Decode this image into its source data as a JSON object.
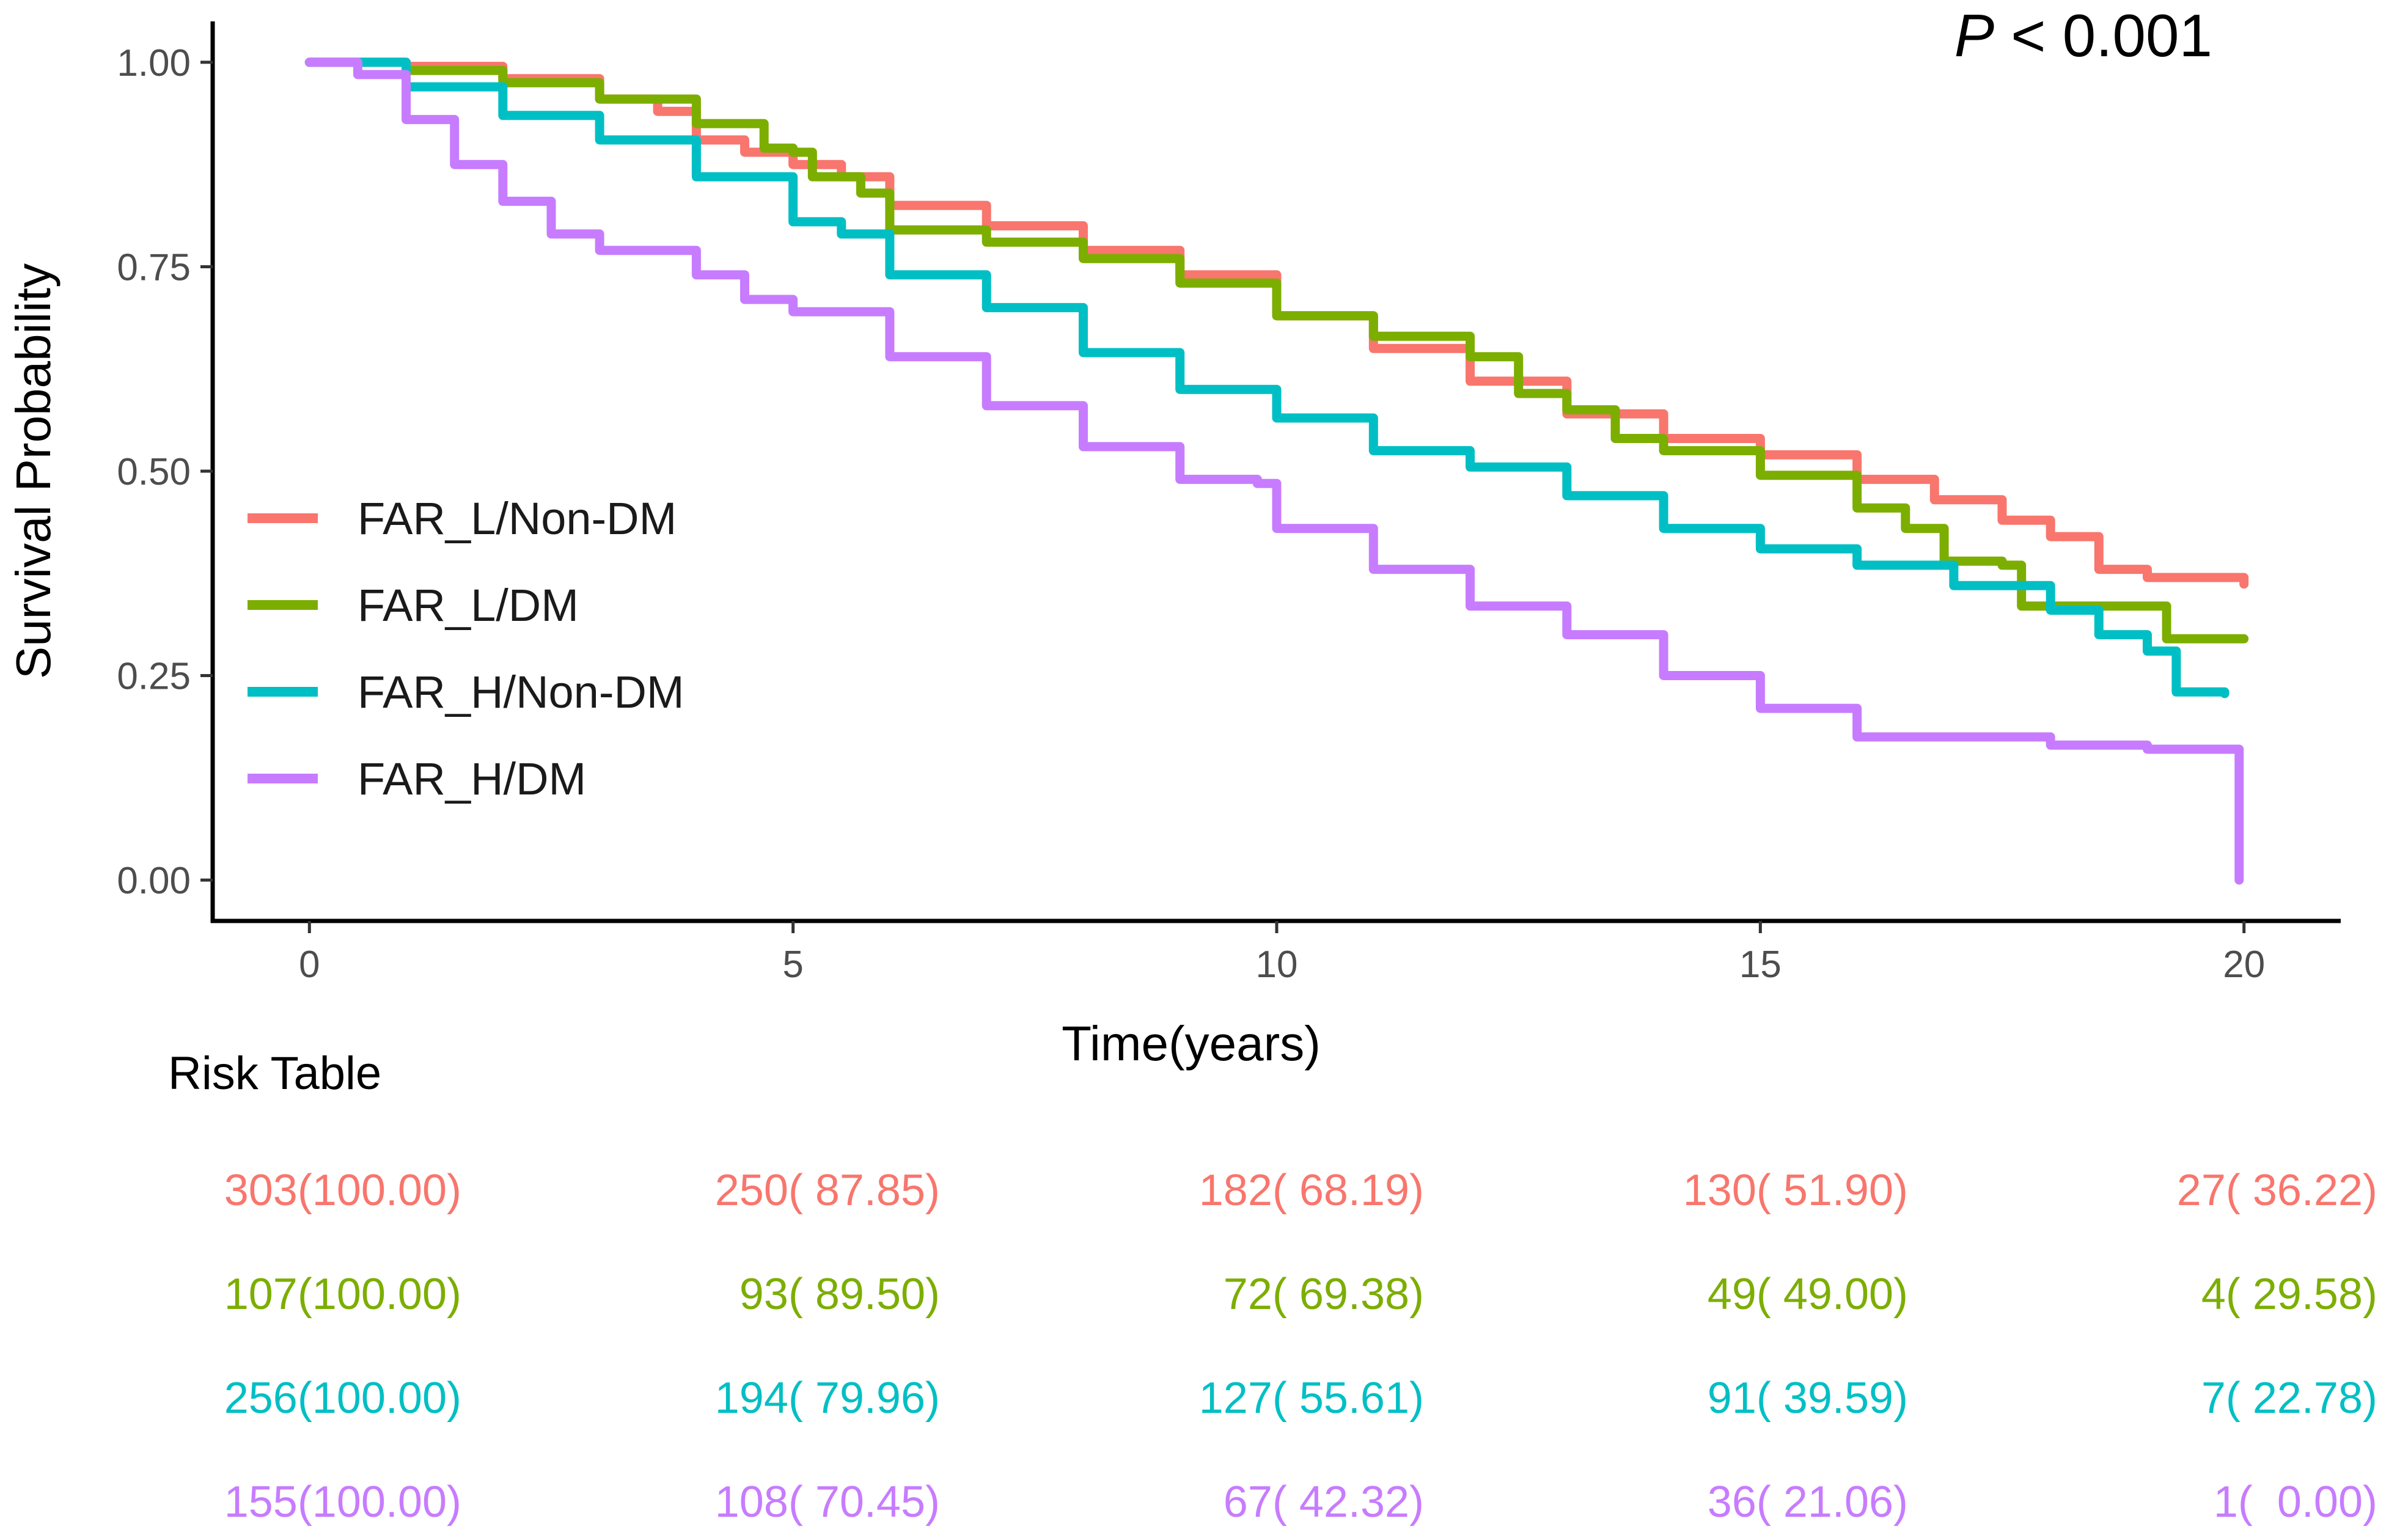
{
  "chart_data": {
    "type": "line",
    "subtype": "kaplan-meier",
    "xlabel": "Time(years)",
    "ylabel": "Survival Probability",
    "xlim": [
      -1,
      21
    ],
    "ylim": [
      -0.05,
      1.05
    ],
    "x_ticks": [
      0,
      5,
      10,
      15,
      20
    ],
    "x_tick_labels": [
      "0",
      "5",
      "10",
      "15",
      "20"
    ],
    "y_ticks": [
      0,
      0.25,
      0.5,
      0.75,
      1.0
    ],
    "y_tick_labels": [
      "0.00",
      "0.25",
      "0.50",
      "0.75",
      "1.00"
    ],
    "grid": false,
    "legend_position": "bottom-left",
    "annotation": {
      "italic": "P",
      "text": " < 0.001"
    },
    "series": [
      {
        "name": "FAR_L/Non-DM",
        "color": "#F8766D",
        "x": [
          0,
          1,
          2,
          3,
          3.6,
          4,
          4.5,
          5,
          5.5,
          6,
          7,
          8,
          9,
          10,
          11,
          12,
          13,
          14,
          15,
          16,
          16.8,
          17.5,
          18,
          18.5,
          19,
          20
        ],
        "y": [
          1.0,
          0.995,
          0.98,
          0.955,
          0.94,
          0.905,
          0.89,
          0.875,
          0.86,
          0.825,
          0.8,
          0.77,
          0.74,
          0.69,
          0.65,
          0.61,
          0.57,
          0.54,
          0.52,
          0.49,
          0.465,
          0.44,
          0.42,
          0.38,
          0.37,
          0.362
        ]
      },
      {
        "name": "FAR_L/DM",
        "color": "#7CAE00",
        "x": [
          0,
          1,
          2,
          3,
          4,
          4.7,
          5,
          5.2,
          5.7,
          6,
          7,
          8,
          9,
          10,
          11,
          12,
          12.5,
          13,
          13.5,
          14,
          15,
          16,
          16.5,
          16.9,
          17.5,
          17.7,
          18.7,
          19.2,
          20
        ],
        "y": [
          1.0,
          0.99,
          0.975,
          0.955,
          0.925,
          0.895,
          0.89,
          0.86,
          0.84,
          0.795,
          0.78,
          0.76,
          0.73,
          0.69,
          0.665,
          0.64,
          0.595,
          0.575,
          0.54,
          0.525,
          0.495,
          0.455,
          0.43,
          0.39,
          0.385,
          0.335,
          0.335,
          0.295,
          0.295
        ]
      },
      {
        "name": "FAR_H/Non-DM",
        "color": "#00BFC4",
        "x": [
          0,
          1,
          2,
          3,
          4,
          5,
          5.5,
          6,
          7,
          8,
          9,
          10,
          11,
          12,
          13,
          14,
          15,
          16,
          17,
          18,
          18.5,
          19,
          19.3,
          19.8
        ],
        "y": [
          1.0,
          0.97,
          0.935,
          0.905,
          0.86,
          0.805,
          0.79,
          0.74,
          0.7,
          0.645,
          0.6,
          0.565,
          0.525,
          0.505,
          0.47,
          0.43,
          0.405,
          0.385,
          0.36,
          0.33,
          0.3,
          0.28,
          0.23,
          0.228
        ]
      },
      {
        "name": "FAR_H/DM",
        "color": "#C77CFF",
        "x": [
          0,
          0.5,
          1,
          1.5,
          2,
          2.5,
          3,
          4,
          4.5,
          5,
          6,
          7,
          8,
          9,
          9.8,
          10,
          11,
          12,
          13,
          14,
          15,
          16,
          17,
          17.5,
          18,
          19,
          19.9,
          19.95
        ],
        "y": [
          1.0,
          0.985,
          0.93,
          0.875,
          0.83,
          0.79,
          0.77,
          0.74,
          0.71,
          0.695,
          0.64,
          0.58,
          0.53,
          0.49,
          0.485,
          0.43,
          0.38,
          0.335,
          0.3,
          0.25,
          0.21,
          0.175,
          0.175,
          0.175,
          0.165,
          0.16,
          0.16,
          0.0
        ]
      }
    ]
  },
  "risk_table": {
    "title": "Risk Table",
    "time_points": [
      0,
      5,
      10,
      15,
      20
    ],
    "rows": [
      {
        "group": "FAR_L/Non-DM",
        "color": "#F8766D",
        "cells": [
          "303(100.00)",
          "250( 87.85)",
          "182( 68.19)",
          "130( 51.90)",
          "27( 36.22)"
        ]
      },
      {
        "group": "FAR_L/DM",
        "color": "#7CAE00",
        "cells": [
          "107(100.00)",
          "93( 89.50)",
          "72( 69.38)",
          "49( 49.00)",
          "4( 29.58)"
        ]
      },
      {
        "group": "FAR_H/Non-DM",
        "color": "#00BFC4",
        "cells": [
          "256(100.00)",
          "194( 79.96)",
          "127( 55.61)",
          "91( 39.59)",
          "7( 22.78)"
        ]
      },
      {
        "group": "FAR_H/DM",
        "color": "#C77CFF",
        "cells": [
          "155(100.00)",
          "108( 70.45)",
          "67( 42.32)",
          "36( 21.06)",
          "1(  0.00)"
        ]
      }
    ]
  }
}
